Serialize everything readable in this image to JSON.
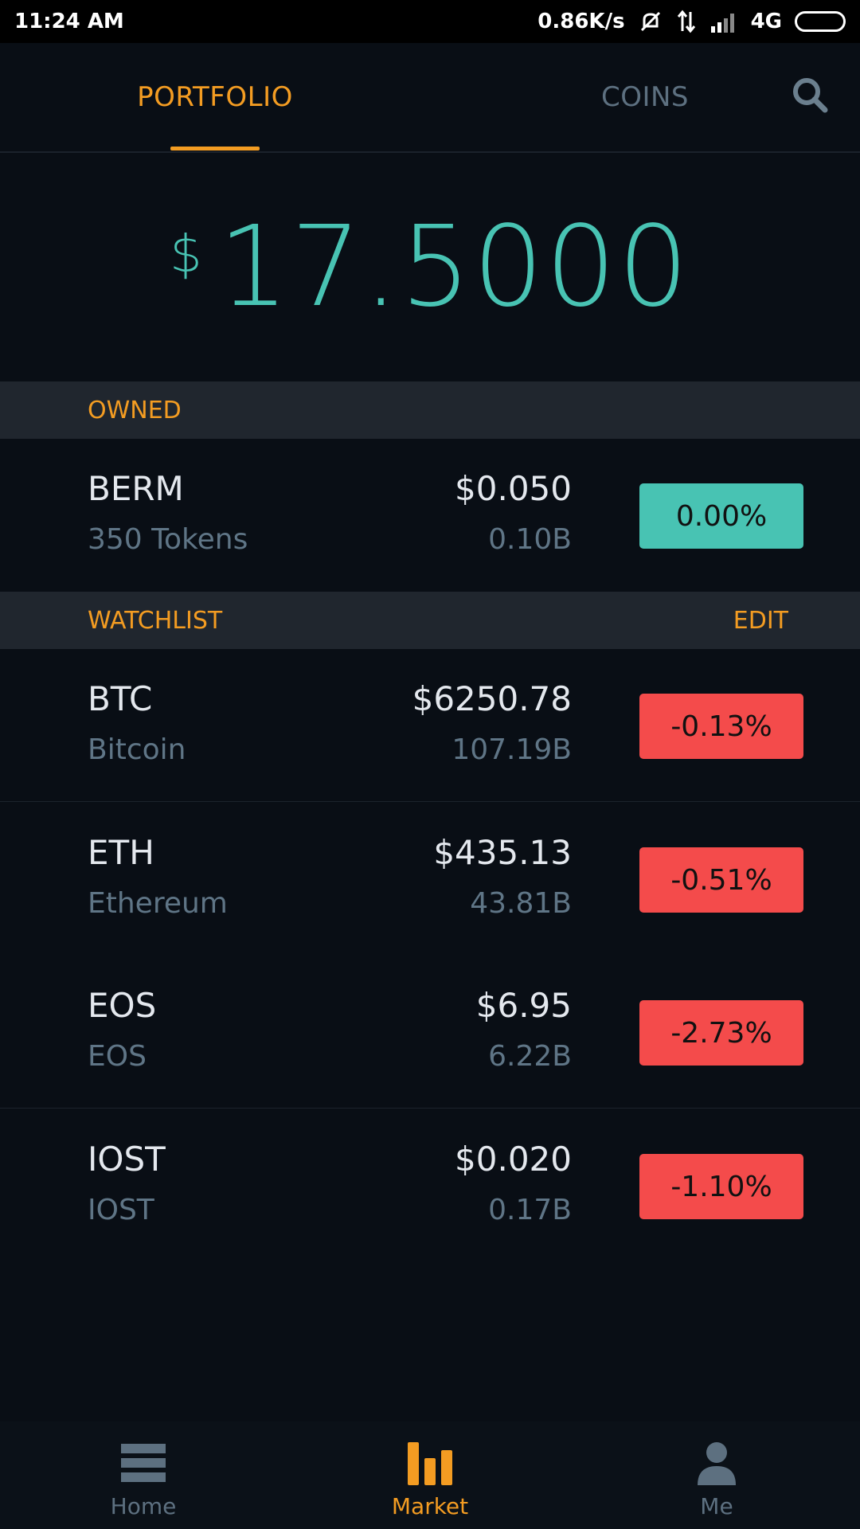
{
  "status_bar": {
    "time": "11:24 AM",
    "net_speed": "0.86K/s",
    "network": "4G"
  },
  "tabs": {
    "portfolio": "PORTFOLIO",
    "coins": "COINS"
  },
  "balance": {
    "currency": "$",
    "value": "17.5000"
  },
  "owned": {
    "header": "OWNED",
    "items": [
      {
        "symbol": "BERM",
        "sub": "350 Tokens",
        "price": "$0.050",
        "cap": "0.10B",
        "change": "0.00%"
      }
    ]
  },
  "watchlist": {
    "header": "WATCHLIST",
    "edit": "EDIT",
    "items": [
      {
        "symbol": "BTC",
        "sub": "Bitcoin",
        "price": "$6250.78",
        "cap": "107.19B",
        "change": "-0.13%"
      },
      {
        "symbol": "ETH",
        "sub": "Ethereum",
        "price": "$435.13",
        "cap": "43.81B",
        "change": "-0.51%"
      },
      {
        "symbol": "EOS",
        "sub": "EOS",
        "price": "$6.95",
        "cap": "6.22B",
        "change": "-2.73%"
      },
      {
        "symbol": "IOST",
        "sub": "IOST",
        "price": "$0.020",
        "cap": "0.17B",
        "change": "-1.10%"
      }
    ]
  },
  "nav": {
    "home": "Home",
    "market": "Market",
    "me": "Me"
  },
  "colors": {
    "accent": "#f39c22",
    "teal": "#48c3b3",
    "down": "#f44b4b",
    "background": "#090e15"
  }
}
